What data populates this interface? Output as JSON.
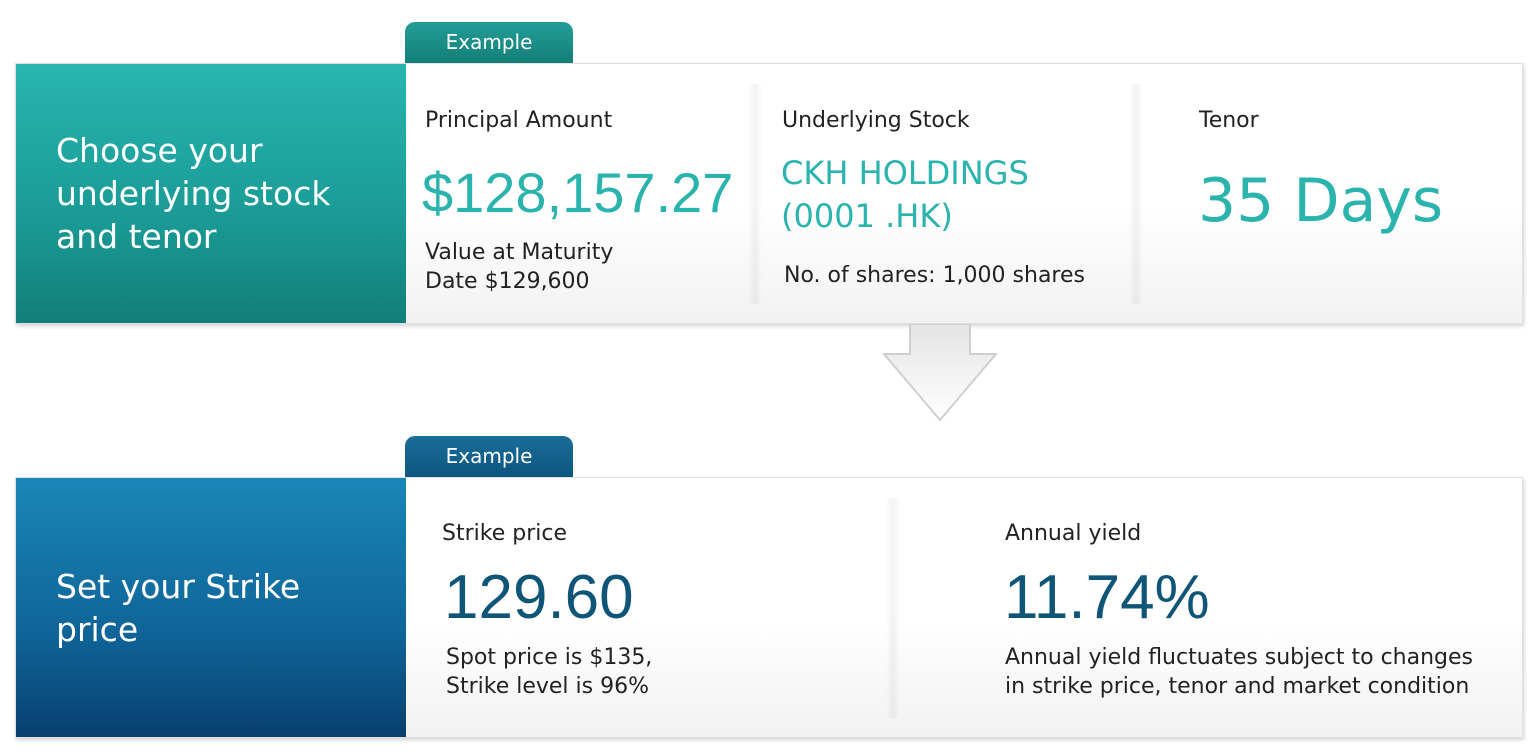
{
  "step1": {
    "tab_label": "Example",
    "heading_line1": "Choose your",
    "heading_line2": "underlying stock",
    "heading_line3": "and tenor",
    "principal": {
      "label": "Principal Amount",
      "value": "$128,157.27",
      "note_line1": "Value at Maturity",
      "note_line2": "Date $129,600"
    },
    "stock": {
      "label": "Underlying Stock",
      "name_line1": "CKH HOLDINGS",
      "name_line2": "(0001 .HK)",
      "note": "No. of shares: 1,000 shares"
    },
    "tenor": {
      "label": "Tenor",
      "value": "35 Days"
    }
  },
  "step2": {
    "tab_label": "Example",
    "heading_line1": "Set your Strike",
    "heading_line2": "price",
    "strike": {
      "label": "Strike price",
      "value": "129.60",
      "note_line1": "Spot price is $135,",
      "note_line2": "Strike level is 96%"
    },
    "yield": {
      "label": "Annual yield",
      "value": "11.74%",
      "note_line1": "Annual yield fluctuates subject to changes",
      "note_line2": "in strike price, tenor and market condition"
    }
  },
  "colors": {
    "teal_accent": "#2bb3ad",
    "blue_accent": "#0f5578"
  },
  "icons": {
    "arrow": "down-arrow-icon"
  }
}
